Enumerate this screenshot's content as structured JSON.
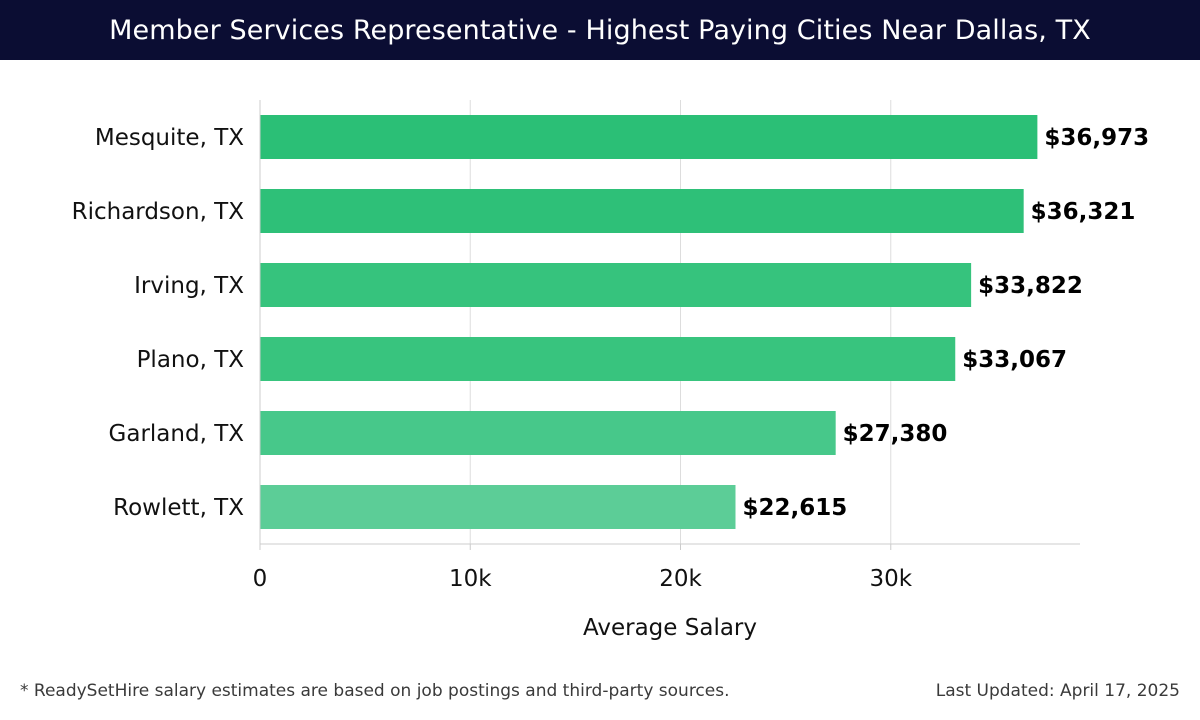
{
  "header": {
    "title": "Member Services Representative - Highest Paying Cities Near Dallas, TX"
  },
  "chart_data": {
    "type": "bar",
    "orientation": "horizontal",
    "categories": [
      "Mesquite, TX",
      "Richardson, TX",
      "Irving, TX",
      "Plano, TX",
      "Garland, TX",
      "Rowlett, TX"
    ],
    "values": [
      36973,
      36321,
      33822,
      33067,
      27380,
      22615
    ],
    "data_labels": [
      "$36,973",
      "$36,321",
      "$33,822",
      "$33,067",
      "$27,380",
      "$22,615"
    ],
    "bar_colors": [
      "#2bbf76",
      "#2ec078",
      "#36c37d",
      "#38c47e",
      "#47c88a",
      "#5ccd97"
    ],
    "xlabel": "Average Salary",
    "xlim": [
      0,
      39000
    ],
    "xticks": [
      0,
      10000,
      20000,
      30000
    ],
    "xtick_labels": [
      "0",
      "10k",
      "20k",
      "30k"
    ],
    "grid": "vertical"
  },
  "footer": {
    "note": "* ReadySetHire salary estimates are based on job postings and third-party sources.",
    "updated": "Last Updated: April 17, 2025"
  }
}
